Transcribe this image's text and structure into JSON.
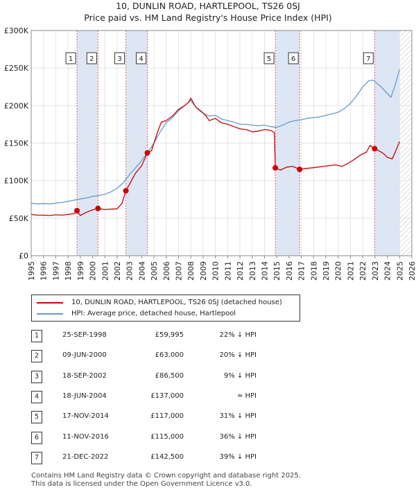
{
  "title": "10, DUNLIN ROAD, HARTLEPOOL, TS26 0SJ",
  "subtitle": "Price paid vs. HM Land Registry's House Price Index (HPI)",
  "colors": {
    "property": "#cc0000",
    "hpi": "#6699cc",
    "shade": "#dde6f5",
    "vline": "#e06060"
  },
  "chart_data": {
    "type": "line",
    "x_range": [
      1995,
      2026
    ],
    "ylim": [
      0,
      300000
    ],
    "y_ticks": [
      {
        "value": 0,
        "label": "£0"
      },
      {
        "value": 50000,
        "label": "£50K"
      },
      {
        "value": 100000,
        "label": "£100K"
      },
      {
        "value": 150000,
        "label": "£150K"
      },
      {
        "value": 200000,
        "label": "£200K"
      },
      {
        "value": 250000,
        "label": "£250K"
      },
      {
        "value": 300000,
        "label": "£300K"
      }
    ],
    "x_ticks": [
      "1995",
      "1996",
      "1997",
      "1998",
      "1999",
      "2000",
      "2001",
      "2002",
      "2003",
      "2004",
      "2005",
      "2006",
      "2007",
      "2008",
      "2009",
      "2010",
      "2011",
      "2012",
      "2013",
      "2014",
      "2015",
      "2016",
      "2017",
      "2018",
      "2019",
      "2020",
      "2021",
      "2022",
      "2023",
      "2024",
      "2025",
      "2026"
    ],
    "grid": true,
    "shaded_spans": [
      [
        1998.73,
        2000.44
      ],
      [
        2002.71,
        2004.46
      ],
      [
        2014.88,
        2016.86
      ],
      [
        2022.97,
        2025.0
      ]
    ],
    "hatch_from": 2025.0,
    "series": [
      {
        "name": "10, DUNLIN ROAD, HARTLEPOOL, TS26 0SJ (detached house)",
        "x": [
          1995.0,
          1995.5,
          1996.0,
          1996.5,
          1997.0,
          1997.5,
          1998.0,
          1998.5,
          1998.73,
          1999.0,
          1999.5,
          2000.0,
          2000.44,
          2001.0,
          2001.5,
          2002.0,
          2002.4,
          2002.71,
          2003.0,
          2003.5,
          2004.0,
          2004.46,
          2004.8,
          2005.0,
          2005.3,
          2005.6,
          2006.0,
          2006.5,
          2007.0,
          2007.5,
          2007.8,
          2008.0,
          2008.4,
          2008.8,
          2009.2,
          2009.5,
          2010.0,
          2010.5,
          2011.0,
          2011.5,
          2012.0,
          2012.5,
          2013.0,
          2013.5,
          2014.0,
          2014.5,
          2014.8,
          2014.88,
          2015.3,
          2015.8,
          2016.3,
          2016.86,
          2017.3,
          2017.8,
          2018.3,
          2018.8,
          2019.3,
          2019.8,
          2020.3,
          2020.8,
          2021.3,
          2021.8,
          2022.3,
          2022.6,
          2022.97,
          2023.3,
          2023.7,
          2024.0,
          2024.4,
          2024.7,
          2025.0
        ],
        "y": [
          55000,
          54000,
          54000,
          53500,
          54500,
          54000,
          55000,
          56000,
          59995,
          53500,
          58000,
          61000,
          63000,
          61500,
          62000,
          62500,
          70000,
          86500,
          95000,
          110000,
          120000,
          137000,
          140000,
          150000,
          165000,
          178000,
          180000,
          186000,
          195000,
          200000,
          204000,
          210000,
          198000,
          193000,
          187000,
          180000,
          183000,
          177000,
          175000,
          172000,
          169000,
          168000,
          165000,
          166000,
          168000,
          167000,
          164000,
          117000,
          114000,
          118000,
          119000,
          115000,
          116000,
          117000,
          118000,
          119000,
          120000,
          121000,
          119000,
          123000,
          128000,
          134000,
          138000,
          147000,
          142500,
          140000,
          136000,
          131000,
          129000,
          140000,
          152000
        ]
      },
      {
        "name": "HPI: Average price, detached house, Hartlepool",
        "x": [
          1995.0,
          1995.5,
          1996.0,
          1996.5,
          1997.0,
          1997.5,
          1998.0,
          1998.5,
          1999.0,
          1999.5,
          2000.0,
          2000.5,
          2001.0,
          2001.5,
          2002.0,
          2002.5,
          2003.0,
          2003.5,
          2004.0,
          2004.5,
          2005.0,
          2005.5,
          2006.0,
          2006.5,
          2007.0,
          2007.5,
          2008.0,
          2008.4,
          2008.8,
          2009.2,
          2009.5,
          2010.0,
          2010.5,
          2011.0,
          2011.5,
          2012.0,
          2012.5,
          2013.0,
          2013.5,
          2014.0,
          2014.5,
          2015.0,
          2015.5,
          2016.0,
          2016.5,
          2017.0,
          2017.5,
          2018.0,
          2018.5,
          2019.0,
          2019.5,
          2020.0,
          2020.5,
          2021.0,
          2021.5,
          2022.0,
          2022.5,
          2022.8,
          2023.0,
          2023.5,
          2024.0,
          2024.3,
          2024.6,
          2025.0
        ],
        "y": [
          70000,
          69000,
          69500,
          69000,
          70000,
          71000,
          72500,
          74000,
          75500,
          77000,
          79000,
          80000,
          82000,
          85000,
          90000,
          97000,
          108000,
          117000,
          127000,
          138000,
          150000,
          165000,
          177000,
          184000,
          193000,
          200000,
          207000,
          198000,
          192000,
          188000,
          186000,
          187000,
          182000,
          180000,
          178000,
          175000,
          175000,
          174000,
          173000,
          174000,
          172000,
          171000,
          174000,
          178000,
          180000,
          181000,
          183000,
          184000,
          185000,
          187000,
          189000,
          191000,
          196000,
          203000,
          213000,
          225000,
          233000,
          234000,
          232000,
          225000,
          216000,
          211000,
          225000,
          248000
        ]
      }
    ],
    "markers": [
      {
        "label": "1",
        "x": 1998.73,
        "y": 59995
      },
      {
        "label": "2",
        "x": 2000.44,
        "y": 63000
      },
      {
        "label": "3",
        "x": 2002.71,
        "y": 86500
      },
      {
        "label": "4",
        "x": 2004.46,
        "y": 137000
      },
      {
        "label": "5",
        "x": 2014.88,
        "y": 117000
      },
      {
        "label": "6",
        "x": 2016.86,
        "y": 115000
      },
      {
        "label": "7",
        "x": 2022.97,
        "y": 142500
      }
    ]
  },
  "legend": {
    "property": "10, DUNLIN ROAD, HARTLEPOOL, TS26 0SJ (detached house)",
    "hpi": "HPI: Average price, detached house, Hartlepool"
  },
  "transactions": [
    {
      "num": "1",
      "date": "25-SEP-1998",
      "price": "£59,995",
      "hpi": "22% ↓ HPI"
    },
    {
      "num": "2",
      "date": "09-JUN-2000",
      "price": "£63,000",
      "hpi": "20% ↓ HPI"
    },
    {
      "num": "3",
      "date": "18-SEP-2002",
      "price": "£86,500",
      "hpi": "9% ↓ HPI"
    },
    {
      "num": "4",
      "date": "18-JUN-2004",
      "price": "£137,000",
      "hpi": "≈ HPI"
    },
    {
      "num": "5",
      "date": "17-NOV-2014",
      "price": "£117,000",
      "hpi": "31% ↓ HPI"
    },
    {
      "num": "6",
      "date": "11-NOV-2016",
      "price": "£115,000",
      "hpi": "36% ↓ HPI"
    },
    {
      "num": "7",
      "date": "21-DEC-2022",
      "price": "£142,500",
      "hpi": "39% ↓ HPI"
    }
  ],
  "footer": {
    "line1": "Contains HM Land Registry data © Crown copyright and database right 2025.",
    "line2": "This data is licensed under the Open Government Licence v3.0."
  }
}
